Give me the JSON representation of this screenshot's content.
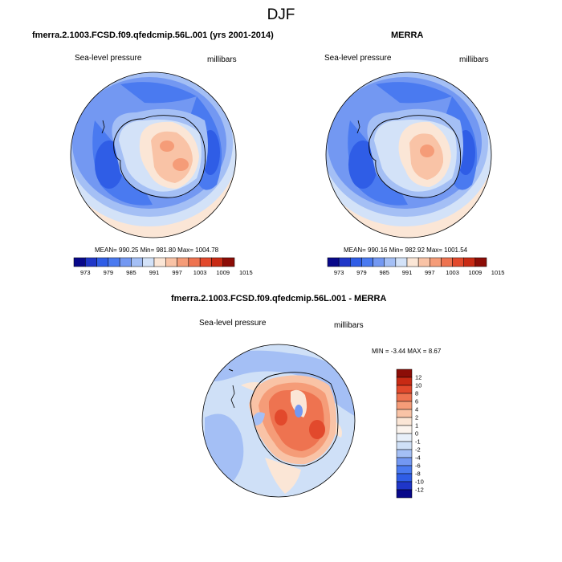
{
  "figure": {
    "title": "DJF"
  },
  "panels": [
    {
      "id": "model",
      "title": "fmerra.2.1003.FCSD.f09.qfedcmip.56L.001 (yrs 2001-2014)",
      "variable_label": "Sea-level pressure",
      "units_label": "millibars",
      "stats_text": "MEAN= 990.25  Min= 981.80  Max= 1004.78",
      "colorbar": {
        "orientation": "horizontal",
        "colors": [
          "#08088a",
          "#1f36c8",
          "#2f5de6",
          "#4a7af0",
          "#7398f2",
          "#a4bff5",
          "#d3e2f8",
          "#fbe6d6",
          "#f9c3a6",
          "#f59c78",
          "#ee7350",
          "#e2492c",
          "#c82a14",
          "#8c0d07"
        ],
        "tick_labels": [
          "973",
          "979",
          "985",
          "991",
          "997",
          "1003",
          "1009",
          "1015"
        ]
      }
    },
    {
      "id": "reference",
      "title": "MERRA",
      "variable_label": "Sea-level pressure",
      "units_label": "millibars",
      "stats_text": "MEAN= 990.16  Min= 982.92  Max= 1001.54",
      "colorbar": {
        "orientation": "horizontal",
        "colors": [
          "#08088a",
          "#1f36c8",
          "#2f5de6",
          "#4a7af0",
          "#7398f2",
          "#a4bff5",
          "#d3e2f8",
          "#fbe6d6",
          "#f9c3a6",
          "#f59c78",
          "#ee7350",
          "#e2492c",
          "#c82a14",
          "#8c0d07"
        ],
        "tick_labels": [
          "973",
          "979",
          "985",
          "991",
          "997",
          "1003",
          "1009",
          "1015"
        ]
      }
    },
    {
      "id": "difference",
      "title": "fmerra.2.1003.FCSD.f09.qfedcmip.56L.001 - MERRA",
      "variable_label": "Sea-level pressure",
      "units_label": "millibars",
      "stats_text": "MIN =  -3.44 MAX =   8.67",
      "colorbar": {
        "orientation": "vertical",
        "colors": [
          "#8c0d07",
          "#c82a14",
          "#e2492c",
          "#ee7350",
          "#f59c78",
          "#f9c3a6",
          "#fbe6d6",
          "#fbf4ee",
          "#e8f0fa",
          "#cfe0f7",
          "#a4bff5",
          "#7398f2",
          "#4a7af0",
          "#2f5de6",
          "#1f36c8",
          "#08088a"
        ],
        "tick_labels": [
          "12",
          "10",
          "8",
          "6",
          "4",
          "2",
          "1",
          "0",
          "-1",
          "-2",
          "-4",
          "-6",
          "-8",
          "-10",
          "-12"
        ]
      }
    }
  ]
}
